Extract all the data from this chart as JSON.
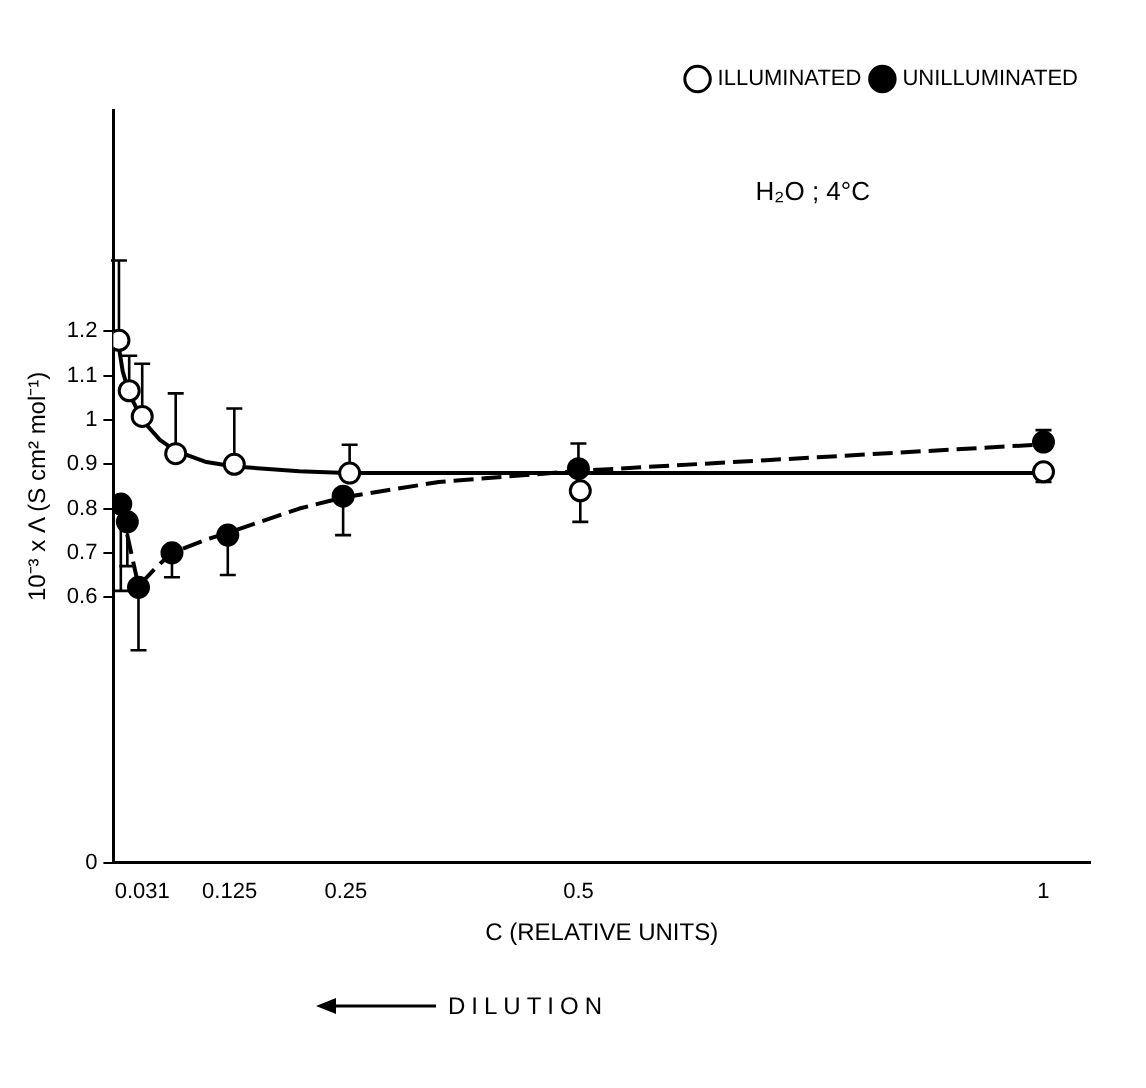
{
  "chart_data": {
    "type": "scatter",
    "xlabel": "C (RELATIVE UNITS)",
    "ylabel": "10⁻³ x Λ (S cm² mol⁻¹)",
    "annotations": [
      "H₂O ; 4°C",
      "DILUTION"
    ],
    "series": [
      {
        "name": "ILLUMINATED",
        "color": "#ffffff",
        "x": [
          0.006,
          0.017,
          0.031,
          0.067,
          0.13,
          0.254,
          0.502,
          1.0
        ],
        "values": [
          1.18,
          1.066,
          1.008,
          0.924,
          0.9,
          0.88,
          0.84,
          0.883
        ],
        "errors": [
          [
            1.18,
            1.36
          ],
          [
            1.066,
            1.145
          ],
          [
            1.008,
            1.127
          ],
          [
            0.924,
            1.06
          ],
          [
            0.9,
            1.026
          ],
          [
            0.88,
            0.944
          ],
          [
            0.77,
            0.84
          ],
          [
            0.86,
            0.883
          ]
        ]
      },
      {
        "name": "UNILLUMINATED",
        "color": "#000000",
        "x": [
          0.008,
          0.015,
          0.027,
          0.063,
          0.123,
          0.247,
          0.5,
          1.0
        ],
        "values": [
          0.81,
          0.77,
          0.622,
          0.7,
          0.74,
          0.828,
          0.89,
          0.95
        ],
        "errors": [
          [
            0.614,
            0.81
          ],
          [
            0.67,
            0.77
          ],
          [
            0.48,
            0.622
          ],
          [
            0.645,
            0.7
          ],
          [
            0.65,
            0.74
          ],
          [
            0.74,
            0.828
          ],
          [
            0.89,
            0.947
          ],
          [
            0.95,
            0.977
          ]
        ]
      },
      {
        "type": "line",
        "color": "#000000",
        "marker": "none",
        "x": [
          0.004,
          0.01,
          0.017,
          0.031,
          0.05,
          0.067,
          0.1,
          0.13,
          0.2,
          0.25,
          0.5,
          1.0
        ],
        "values": [
          1.19,
          1.11,
          1.06,
          1.0,
          0.955,
          0.93,
          0.905,
          0.895,
          0.884,
          0.88,
          0.88,
          0.88
        ]
      },
      {
        "type": "line",
        "color": "#000000",
        "marker": "none",
        "line_style": "dashed",
        "x": [
          0.004,
          0.008,
          0.015,
          0.027,
          0.045,
          0.063,
          0.1,
          0.123,
          0.2,
          0.247,
          0.35,
          0.5,
          1.0
        ],
        "values": [
          0.8,
          0.79,
          0.74,
          0.625,
          0.665,
          0.7,
          0.73,
          0.745,
          0.8,
          0.825,
          0.86,
          0.885,
          0.945
        ]
      }
    ],
    "xlim": [
      0,
      1.05
    ],
    "xticks": [
      0.031,
      0.125,
      0.25,
      0.5,
      1
    ],
    "ylim": [
      0,
      1.7
    ],
    "yticks": [
      0,
      0.6,
      0.7,
      0.8,
      0.9,
      1,
      1.1,
      1.2
    ],
    "marker": "circle",
    "grid": false,
    "legend": "top right"
  }
}
